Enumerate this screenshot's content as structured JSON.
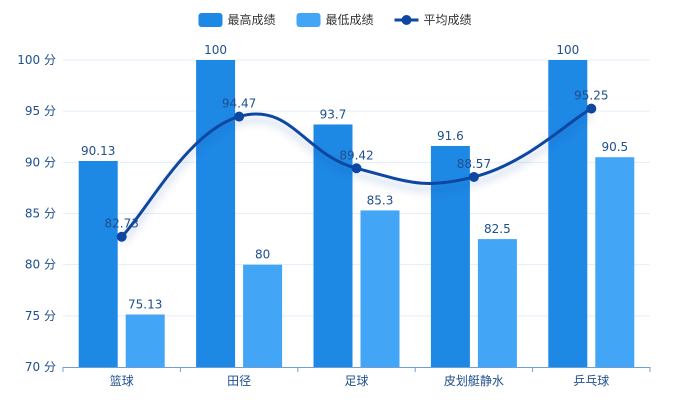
{
  "chart_data": {
    "type": "bar",
    "categories": [
      "篮球",
      "田径",
      "足球",
      "皮划艇静水",
      "乒乓球"
    ],
    "series": [
      {
        "name": "最高成绩",
        "type": "bar",
        "values": [
          90.13,
          100,
          93.7,
          91.6,
          100
        ],
        "color": "#1e88e5"
      },
      {
        "name": "最低成绩",
        "type": "bar",
        "values": [
          75.13,
          80,
          85.3,
          82.5,
          90.5
        ],
        "color": "#42a5f5"
      },
      {
        "name": "平均成绩",
        "type": "line",
        "smooth": true,
        "values": [
          82.73,
          94.47,
          89.42,
          88.57,
          95.25
        ],
        "color": "#0d47a1"
      }
    ],
    "ylim": [
      70,
      100
    ],
    "yticks": [
      70,
      75,
      80,
      85,
      90,
      95,
      100
    ],
    "ytick_labels": [
      "70 分",
      "75 分",
      "80 分",
      "85 分",
      "90 分",
      "95 分",
      "100 分"
    ],
    "grid": true,
    "legend_position": "top-center",
    "title": "",
    "xlabel": "",
    "ylabel": ""
  }
}
